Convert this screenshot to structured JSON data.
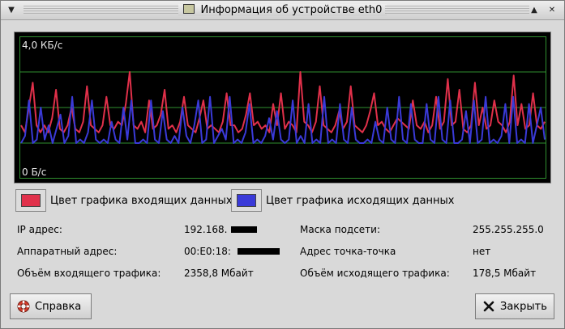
{
  "window": {
    "title": "Информация об устройстве eth0"
  },
  "titlebar": {
    "menu_icon": "chevron-down-icon",
    "shade_icon": "caret-up-icon",
    "close_icon": "close-icon"
  },
  "graph": {
    "max_label": "4,0 КБ/с",
    "min_label": "0 Б/с",
    "incoming_color": "#e0304a",
    "outgoing_color": "#3a3ad8",
    "grid_color": "#2f8f2f"
  },
  "chart_data": {
    "type": "line",
    "ylim": [
      0,
      4.0
    ],
    "series": [
      {
        "name": "Цвет графика входящих данных",
        "values": [
          1.5,
          1.3,
          2.0,
          2.7,
          1.5,
          1.3,
          1.5,
          1.3,
          1.7,
          2.5,
          1.4,
          1.3,
          1.5,
          2.0,
          1.4,
          1.3,
          1.6,
          2.6,
          1.5,
          1.4,
          1.3,
          1.5,
          2.3,
          1.5,
          1.4,
          1.6,
          1.5,
          2.1,
          3.0,
          1.5,
          1.4,
          1.6,
          1.3,
          2.2,
          1.4,
          1.5,
          1.8,
          2.5,
          1.4,
          1.5,
          1.3,
          1.6,
          2.3,
          1.5,
          1.4,
          1.3,
          1.7,
          2.2,
          1.4,
          1.5,
          1.4,
          1.3,
          1.6,
          2.4,
          1.5,
          1.5,
          1.3,
          1.4,
          1.8,
          2.4,
          1.5,
          1.6,
          1.4,
          1.5,
          1.3,
          2.1,
          1.5,
          2.4,
          1.4,
          1.6,
          1.5,
          1.3,
          3.0,
          1.6,
          1.5,
          1.3,
          1.6,
          2.6,
          1.5,
          1.4,
          1.3,
          1.5,
          1.9,
          1.4,
          1.6,
          2.6,
          1.5,
          1.4,
          1.3,
          1.5,
          1.9,
          2.4,
          1.5,
          1.6,
          1.4,
          1.3,
          1.5,
          1.7,
          1.6,
          1.5,
          1.4,
          2.2,
          1.5,
          1.4,
          1.6,
          1.3,
          1.5,
          2.3,
          1.4,
          1.6,
          2.8,
          1.5,
          1.6,
          2.5,
          1.4,
          1.3,
          1.5,
          2.7,
          1.5,
          2.0,
          1.4,
          1.5,
          2.2,
          1.6,
          1.5,
          1.3,
          1.6,
          2.9,
          1.5,
          2.1,
          1.4,
          1.5,
          2.4,
          1.5,
          1.4,
          1.6
        ]
      },
      {
        "name": "Цвет графика исходящих данных",
        "values": [
          1.0,
          1.2,
          2.2,
          1.0,
          1.1,
          2.0,
          1.1,
          1.5,
          1.0,
          1.4,
          1.8,
          1.0,
          1.2,
          2.3,
          1.0,
          1.1,
          1.0,
          1.3,
          2.2,
          1.1,
          1.0,
          1.1,
          1.0,
          1.6,
          1.1,
          1.0,
          2.0,
          1.1,
          2.2,
          1.0,
          1.0,
          1.1,
          1.0,
          2.2,
          1.1,
          1.0,
          1.9,
          1.1,
          1.0,
          1.2,
          1.0,
          2.0,
          1.2,
          1.0,
          1.5,
          2.2,
          1.0,
          1.1,
          2.3,
          1.0,
          1.2,
          1.4,
          1.1,
          2.3,
          1.0,
          1.1,
          1.0,
          1.3,
          2.1,
          1.0,
          1.1,
          1.0,
          1.2,
          1.7,
          1.1,
          1.9,
          1.1,
          1.0,
          1.1,
          2.2,
          1.0,
          1.2,
          1.0,
          2.1,
          1.0,
          1.1,
          1.0,
          2.3,
          1.0,
          1.1,
          1.0,
          2.1,
          1.1,
          1.0,
          2.0,
          1.1,
          1.0,
          1.0,
          1.1,
          1.0,
          1.6,
          1.1,
          1.0,
          2.0,
          1.1,
          1.0,
          2.3,
          1.1,
          1.0,
          2.1,
          1.1,
          1.0,
          1.0,
          2.1,
          1.1,
          1.0,
          2.3,
          1.1,
          1.0,
          2.2,
          1.0,
          1.0,
          1.1,
          1.9,
          1.0,
          2.2,
          1.0,
          1.1,
          2.3,
          1.0,
          1.1,
          1.0,
          1.2,
          2.1,
          1.0,
          2.3,
          1.0,
          1.1,
          1.0,
          2.1,
          1.0,
          1.5,
          2.0,
          1.1
        ]
      }
    ]
  },
  "legend": {
    "incoming_label": "Цвет графика входящих данных",
    "outgoing_label": "Цвет графика исходящих данных"
  },
  "info": {
    "ip_label": "IP адрес:",
    "ip_value": "192.168.",
    "mask_label": "Маска подсети:",
    "mask_value": "255.255.255.0",
    "hw_label": "Аппаратный адрес:",
    "hw_value": "00:E0:18:",
    "p2p_label": "Адрес точка-точка",
    "p2p_value": "нет",
    "rx_label": "Объём входящего трафика:",
    "rx_value": "2358,8 Мбайт",
    "tx_label": "Объём исходящего трафика:",
    "tx_value": "178,5 Мбайт"
  },
  "buttons": {
    "help_label": "Справка",
    "close_label": "Закрыть",
    "help_icon": "lifebuoy-icon",
    "close_icon": "close-x-icon"
  }
}
